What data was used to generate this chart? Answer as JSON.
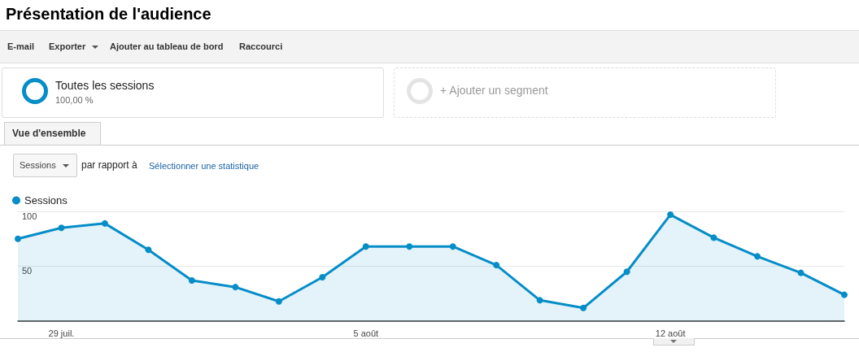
{
  "chart_data": {
    "type": "area",
    "title": "Présentation de l'audience",
    "annotations": [
      "E-mail",
      "Exporter",
      "Ajouter au tableau de bord",
      "Raccourci",
      "Toutes les sessions",
      "100,00 %",
      "+ Ajouter un segment",
      "Vue d'ensemble",
      "Sessions",
      "par rapport à",
      "Sélectionner une statistique"
    ],
    "categories": [
      null,
      "29 juil.",
      null,
      null,
      null,
      null,
      null,
      null,
      "5 août",
      null,
      null,
      null,
      null,
      null,
      null,
      "12 août",
      null,
      null,
      null,
      null
    ],
    "series": [
      {
        "name": "Sessions",
        "color": "#058dc7",
        "values": [
          75,
          85,
          89,
          65,
          37,
          31,
          18,
          40,
          68,
          68,
          68,
          51,
          19,
          12,
          45,
          97,
          76,
          59,
          44,
          24
        ]
      }
    ],
    "ylim": [
      0,
      100
    ],
    "yticks": [
      {
        "value": 0,
        "label": null
      },
      50,
      100
    ],
    "grid": "y",
    "legend": "top left",
    "marker": "circle",
    "line_style": "solid"
  }
}
